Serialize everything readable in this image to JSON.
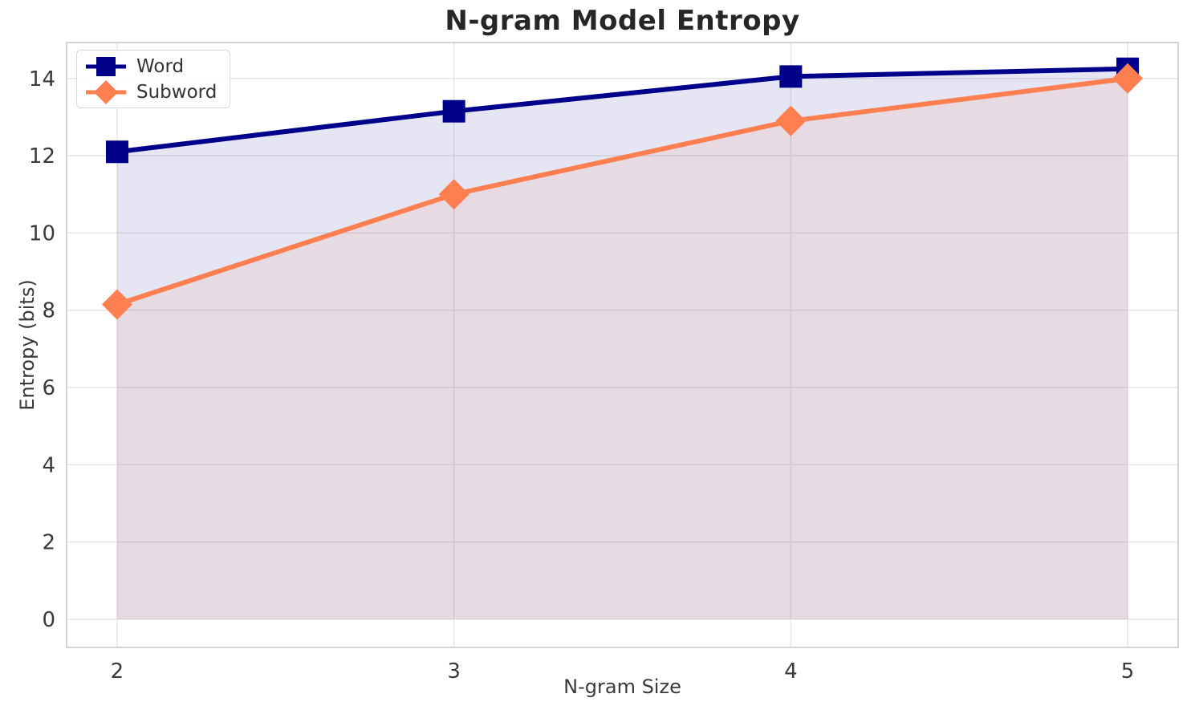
{
  "chart_data": {
    "type": "line",
    "title": "N-gram Model Entropy",
    "xlabel": "N-gram Size",
    "ylabel": "Entropy (bits)",
    "x": [
      2,
      3,
      4,
      5
    ],
    "xticks": [
      2,
      3,
      4,
      5
    ],
    "yticks": [
      0,
      2,
      4,
      6,
      8,
      10,
      12,
      14
    ],
    "xlim": [
      1.85,
      5.15
    ],
    "ylim": [
      -0.73,
      14.93
    ],
    "grid": true,
    "legend_position": "upper-left",
    "background_color": "#ffffff",
    "grid_color": "#e7e7e7",
    "spine_color": "#d0d0d0",
    "series": [
      {
        "name": "Word",
        "values": [
          12.1,
          13.15,
          14.05,
          14.25
        ],
        "color": "#00008B",
        "marker": "square",
        "fill_to_zero": true,
        "fill_opacity": 0.1
      },
      {
        "name": "Subword",
        "values": [
          8.15,
          11.0,
          12.9,
          14.0
        ],
        "color": "#FF7F50",
        "marker": "diamond",
        "fill_to_zero": true,
        "fill_opacity": 0.1
      }
    ]
  }
}
